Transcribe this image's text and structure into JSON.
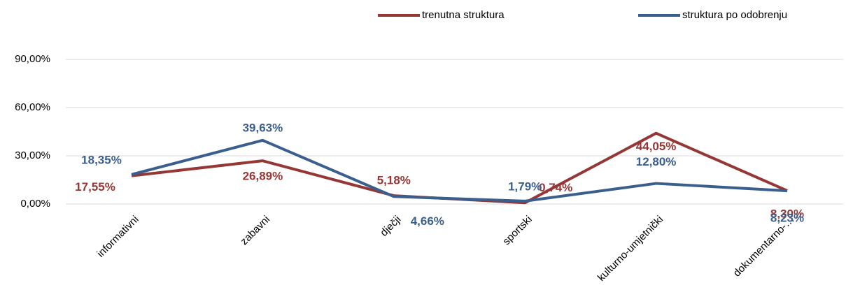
{
  "chart_data": {
    "type": "line",
    "categories": [
      "informativni",
      "zabavni",
      "dječji",
      "sportski",
      "kulturno-umjetnički",
      "dokumentarno-…"
    ],
    "series": [
      {
        "name": "trenutna struktura",
        "color": "#953735",
        "values": [
          17.55,
          26.89,
          5.18,
          0.74,
          44.05,
          8.3
        ],
        "value_labels": [
          "17,55%",
          "26,89%",
          "5,18%",
          "0,74%",
          "44,05%",
          "8,30%"
        ]
      },
      {
        "name": "struktura po odobrenju",
        "color": "#3a5f8f",
        "values": [
          18.35,
          39.63,
          4.66,
          1.79,
          12.8,
          8.23
        ],
        "value_labels": [
          "18,35%",
          "39,63%",
          "4,66%",
          "1,79%",
          "12,80%",
          "8,23%"
        ]
      }
    ],
    "ylim": [
      0,
      90
    ],
    "yticks": [
      {
        "value": 0,
        "label": "0,00%"
      },
      {
        "value": 30,
        "label": "30,00%"
      },
      {
        "value": 60,
        "label": "60,00%"
      },
      {
        "value": 90,
        "label": "90,00%"
      }
    ],
    "grid": true,
    "legend": "top"
  }
}
